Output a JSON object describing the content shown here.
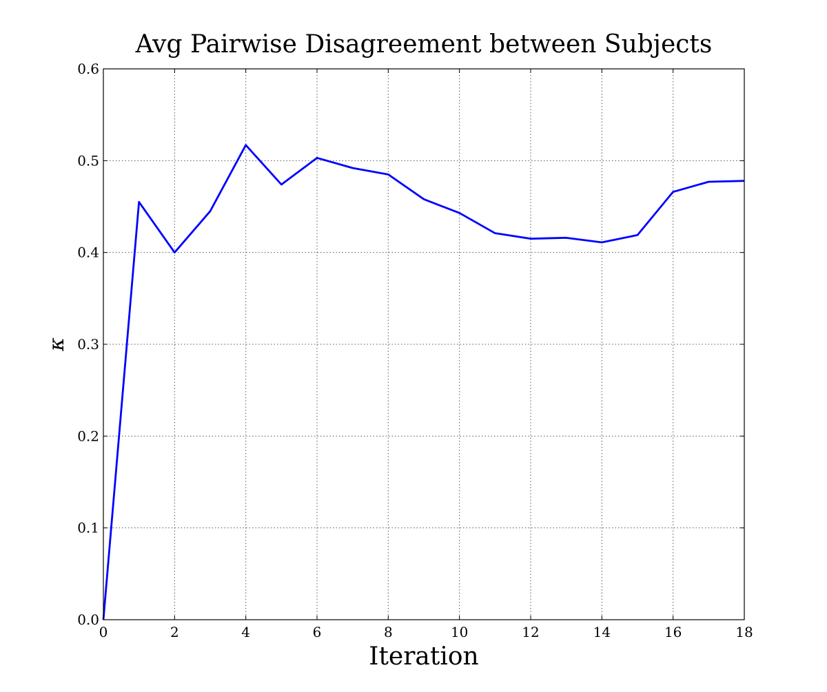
{
  "chart_data": {
    "type": "line",
    "title": "Avg Pairwise Disagreement between Subjects",
    "xlabel": "Iteration",
    "ylabel": "κ",
    "xlim": [
      0,
      18
    ],
    "ylim": [
      0.0,
      0.6
    ],
    "xticks": [
      0,
      2,
      4,
      6,
      8,
      10,
      12,
      14,
      16,
      18
    ],
    "xtick_labels": [
      "0",
      "2",
      "4",
      "6",
      "8",
      "10",
      "12",
      "14",
      "16",
      "18"
    ],
    "yticks": [
      0.0,
      0.1,
      0.2,
      0.3,
      0.4,
      0.5,
      0.6
    ],
    "ytick_labels": [
      "0.0",
      "0.1",
      "0.2",
      "0.3",
      "0.4",
      "0.5",
      "0.6"
    ],
    "grid": true,
    "series": [
      {
        "color": "#0000ff",
        "x": [
          0,
          1,
          2,
          3,
          4,
          5,
          6,
          7,
          8,
          9,
          10,
          11,
          12,
          13,
          14,
          15,
          16,
          17,
          18
        ],
        "y": [
          0.0,
          0.455,
          0.4,
          0.445,
          0.517,
          0.474,
          0.503,
          0.492,
          0.485,
          0.458,
          0.443,
          0.421,
          0.415,
          0.416,
          0.411,
          0.419,
          0.466,
          0.477,
          0.478
        ]
      }
    ]
  }
}
